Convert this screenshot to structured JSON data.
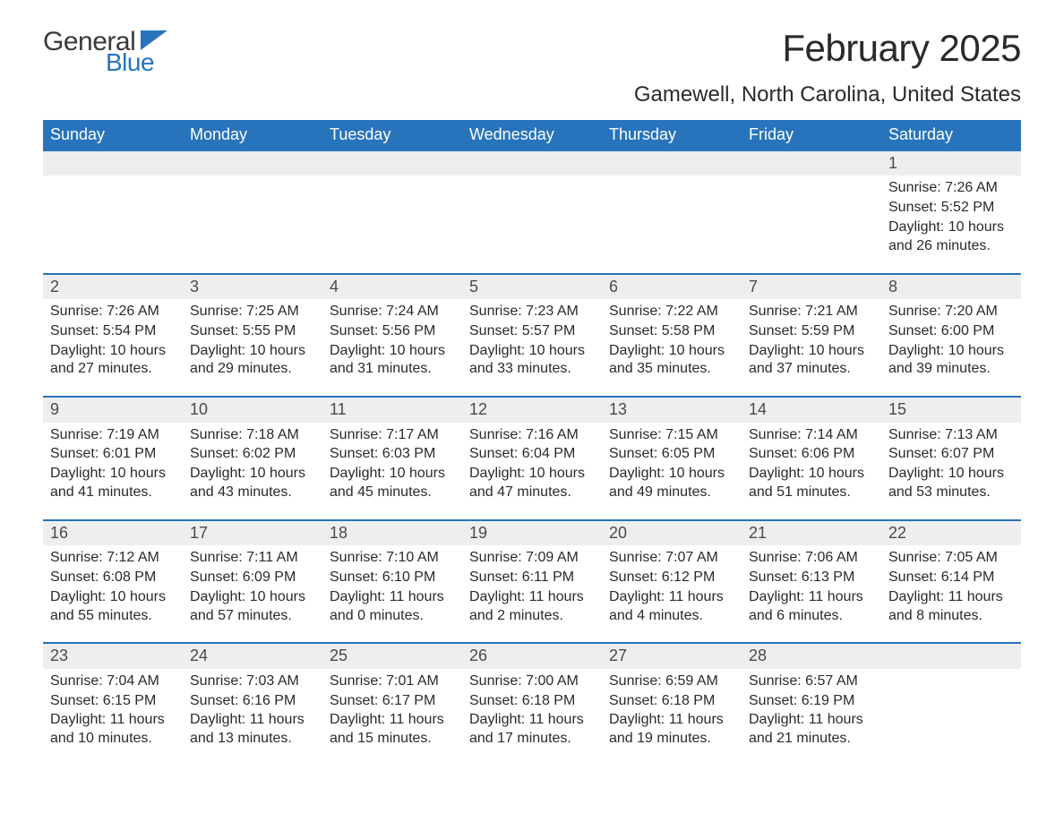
{
  "logo": {
    "text1": "General",
    "text2": "Blue"
  },
  "title": "February 2025",
  "subtitle": "Gamewell, North Carolina, United States",
  "colors": {
    "header_bg": "#2874bc",
    "header_fg": "#ffffff",
    "daynum_bg": "#eeeeee",
    "border_top": "#2874bc",
    "text": "#2a2a2a",
    "logo_blue": "#2874bc"
  },
  "weekdays": [
    "Sunday",
    "Monday",
    "Tuesday",
    "Wednesday",
    "Thursday",
    "Friday",
    "Saturday"
  ],
  "weeks": [
    [
      null,
      null,
      null,
      null,
      null,
      null,
      {
        "n": "1",
        "sunrise": "Sunrise: 7:26 AM",
        "sunset": "Sunset: 5:52 PM",
        "daylight": "Daylight: 10 hours and 26 minutes."
      }
    ],
    [
      {
        "n": "2",
        "sunrise": "Sunrise: 7:26 AM",
        "sunset": "Sunset: 5:54 PM",
        "daylight": "Daylight: 10 hours and 27 minutes."
      },
      {
        "n": "3",
        "sunrise": "Sunrise: 7:25 AM",
        "sunset": "Sunset: 5:55 PM",
        "daylight": "Daylight: 10 hours and 29 minutes."
      },
      {
        "n": "4",
        "sunrise": "Sunrise: 7:24 AM",
        "sunset": "Sunset: 5:56 PM",
        "daylight": "Daylight: 10 hours and 31 minutes."
      },
      {
        "n": "5",
        "sunrise": "Sunrise: 7:23 AM",
        "sunset": "Sunset: 5:57 PM",
        "daylight": "Daylight: 10 hours and 33 minutes."
      },
      {
        "n": "6",
        "sunrise": "Sunrise: 7:22 AM",
        "sunset": "Sunset: 5:58 PM",
        "daylight": "Daylight: 10 hours and 35 minutes."
      },
      {
        "n": "7",
        "sunrise": "Sunrise: 7:21 AM",
        "sunset": "Sunset: 5:59 PM",
        "daylight": "Daylight: 10 hours and 37 minutes."
      },
      {
        "n": "8",
        "sunrise": "Sunrise: 7:20 AM",
        "sunset": "Sunset: 6:00 PM",
        "daylight": "Daylight: 10 hours and 39 minutes."
      }
    ],
    [
      {
        "n": "9",
        "sunrise": "Sunrise: 7:19 AM",
        "sunset": "Sunset: 6:01 PM",
        "daylight": "Daylight: 10 hours and 41 minutes."
      },
      {
        "n": "10",
        "sunrise": "Sunrise: 7:18 AM",
        "sunset": "Sunset: 6:02 PM",
        "daylight": "Daylight: 10 hours and 43 minutes."
      },
      {
        "n": "11",
        "sunrise": "Sunrise: 7:17 AM",
        "sunset": "Sunset: 6:03 PM",
        "daylight": "Daylight: 10 hours and 45 minutes."
      },
      {
        "n": "12",
        "sunrise": "Sunrise: 7:16 AM",
        "sunset": "Sunset: 6:04 PM",
        "daylight": "Daylight: 10 hours and 47 minutes."
      },
      {
        "n": "13",
        "sunrise": "Sunrise: 7:15 AM",
        "sunset": "Sunset: 6:05 PM",
        "daylight": "Daylight: 10 hours and 49 minutes."
      },
      {
        "n": "14",
        "sunrise": "Sunrise: 7:14 AM",
        "sunset": "Sunset: 6:06 PM",
        "daylight": "Daylight: 10 hours and 51 minutes."
      },
      {
        "n": "15",
        "sunrise": "Sunrise: 7:13 AM",
        "sunset": "Sunset: 6:07 PM",
        "daylight": "Daylight: 10 hours and 53 minutes."
      }
    ],
    [
      {
        "n": "16",
        "sunrise": "Sunrise: 7:12 AM",
        "sunset": "Sunset: 6:08 PM",
        "daylight": "Daylight: 10 hours and 55 minutes."
      },
      {
        "n": "17",
        "sunrise": "Sunrise: 7:11 AM",
        "sunset": "Sunset: 6:09 PM",
        "daylight": "Daylight: 10 hours and 57 minutes."
      },
      {
        "n": "18",
        "sunrise": "Sunrise: 7:10 AM",
        "sunset": "Sunset: 6:10 PM",
        "daylight": "Daylight: 11 hours and 0 minutes."
      },
      {
        "n": "19",
        "sunrise": "Sunrise: 7:09 AM",
        "sunset": "Sunset: 6:11 PM",
        "daylight": "Daylight: 11 hours and 2 minutes."
      },
      {
        "n": "20",
        "sunrise": "Sunrise: 7:07 AM",
        "sunset": "Sunset: 6:12 PM",
        "daylight": "Daylight: 11 hours and 4 minutes."
      },
      {
        "n": "21",
        "sunrise": "Sunrise: 7:06 AM",
        "sunset": "Sunset: 6:13 PM",
        "daylight": "Daylight: 11 hours and 6 minutes."
      },
      {
        "n": "22",
        "sunrise": "Sunrise: 7:05 AM",
        "sunset": "Sunset: 6:14 PM",
        "daylight": "Daylight: 11 hours and 8 minutes."
      }
    ],
    [
      {
        "n": "23",
        "sunrise": "Sunrise: 7:04 AM",
        "sunset": "Sunset: 6:15 PM",
        "daylight": "Daylight: 11 hours and 10 minutes."
      },
      {
        "n": "24",
        "sunrise": "Sunrise: 7:03 AM",
        "sunset": "Sunset: 6:16 PM",
        "daylight": "Daylight: 11 hours and 13 minutes."
      },
      {
        "n": "25",
        "sunrise": "Sunrise: 7:01 AM",
        "sunset": "Sunset: 6:17 PM",
        "daylight": "Daylight: 11 hours and 15 minutes."
      },
      {
        "n": "26",
        "sunrise": "Sunrise: 7:00 AM",
        "sunset": "Sunset: 6:18 PM",
        "daylight": "Daylight: 11 hours and 17 minutes."
      },
      {
        "n": "27",
        "sunrise": "Sunrise: 6:59 AM",
        "sunset": "Sunset: 6:18 PM",
        "daylight": "Daylight: 11 hours and 19 minutes."
      },
      {
        "n": "28",
        "sunrise": "Sunrise: 6:57 AM",
        "sunset": "Sunset: 6:19 PM",
        "daylight": "Daylight: 11 hours and 21 minutes."
      },
      null
    ]
  ]
}
